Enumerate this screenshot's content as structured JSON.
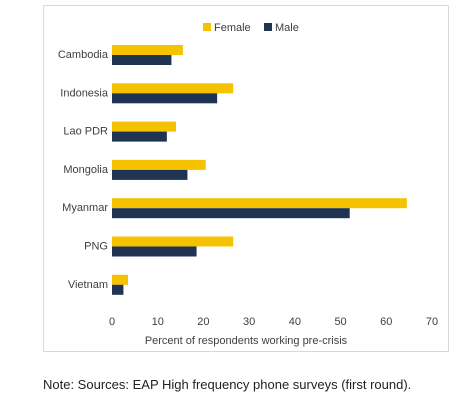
{
  "chart_data": {
    "type": "bar",
    "orientation": "horizontal",
    "title": "",
    "xlabel": "Percent of respondents working pre-crisis",
    "ylabel": "",
    "xlim": [
      0,
      70
    ],
    "xticks": [
      0,
      10,
      20,
      30,
      40,
      50,
      60,
      70
    ],
    "grid": false,
    "legend_position": "top-right",
    "categories": [
      "Cambodia",
      "Indonesia",
      "Lao PDR",
      "Mongolia",
      "Myanmar",
      "PNG",
      "Vietnam"
    ],
    "series": [
      {
        "name": "Female",
        "color": "#f5c200",
        "values": [
          15.5,
          26.5,
          14,
          20.5,
          64.5,
          26.5,
          3.5
        ]
      },
      {
        "name": "Male",
        "color": "#1f3352",
        "values": [
          13,
          23,
          12,
          16.5,
          52,
          18.5,
          2.5
        ]
      }
    ]
  },
  "note": "Note: Sources: EAP High frequency phone surveys (first round)."
}
